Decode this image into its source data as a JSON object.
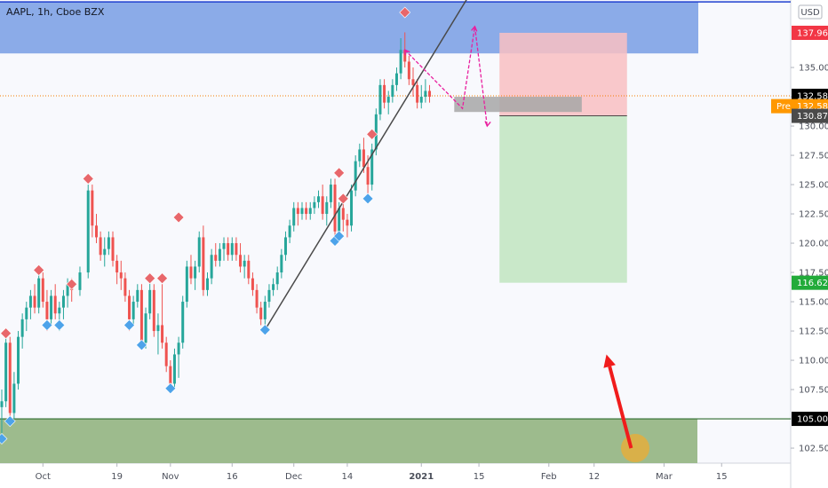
{
  "header": {
    "title": "AAPL, 1h, Cboe BZX",
    "currency": "USD"
  },
  "colors": {
    "plot_bg": "#f8f9fd",
    "up_candle": "#26a69a",
    "down_candle": "#ef5350",
    "supply_zone": "#7ea2e6",
    "supply_border": "#1e3fcf",
    "demand_zone": "#9dbb8d",
    "demand_border": "#2e6b2e",
    "stop_zone": "#f9bfc2",
    "target_zone": "#c9e8c9",
    "entry_box": "#a7a7a7",
    "trendline": "#4a4a4a",
    "projection": "#e91e9e",
    "sell_marker": "#e8676b",
    "buy_marker": "#4da3ea",
    "arrow": "#f01c1c",
    "circle": "#e4ae3d",
    "last_price_line": "#f57c00",
    "tag_red": "#f23645",
    "tag_green": "#22ab3a",
    "tag_dark": "#4a4a4a",
    "tag_black": "#000000",
    "tag_orange": "#ff9800"
  },
  "chart_data": {
    "type": "candlestick",
    "title": "AAPL, 1h, Cboe BZX",
    "ylim": [
      100.5,
      141.5
    ],
    "y_axis_ticks": [
      "102.50",
      "105.00",
      "107.50",
      "110.00",
      "112.50",
      "115.00",
      "117.50",
      "120.00",
      "122.50",
      "125.00",
      "127.50",
      "130.00",
      "132.50",
      "135.00"
    ],
    "x_axis_ticks": [
      "Oct",
      "19",
      "Nov",
      "16",
      "Dec",
      "14",
      "2021",
      "15",
      "Feb",
      "12",
      "Mar",
      "15"
    ],
    "price_tags": [
      {
        "value": 137.96,
        "label": "137.96",
        "kind": "red"
      },
      {
        "value": 132.58,
        "label": "132.58",
        "kind": "black"
      },
      {
        "value": 131.7,
        "label": "132.58",
        "prefix": "Pre",
        "kind": "orange"
      },
      {
        "value": 130.87,
        "label": "130.87",
        "kind": "dark"
      },
      {
        "value": 116.62,
        "label": "116.62",
        "kind": "green"
      },
      {
        "value": 105.0,
        "label": "105.00",
        "kind": "black"
      }
    ],
    "last_price": 132.58,
    "zones": {
      "supply": [
        136.2,
        140.6
      ],
      "demand": [
        101.0,
        105.0
      ],
      "stop_loss": [
        130.87,
        137.96
      ],
      "take_profit": [
        116.62,
        130.87
      ],
      "entry": [
        131.2,
        132.5
      ]
    },
    "trendline": [
      {
        "date": "2020-11-24",
        "price": 112.6
      },
      {
        "date": "2021-01-12",
        "price": 140.8
      }
    ],
    "projection": [
      {
        "date": "2021-01-11",
        "price": 131.5
      },
      {
        "date": "2021-01-14",
        "price": 138.5
      },
      {
        "date": "2021-01-17",
        "price": 130.0
      }
    ],
    "sell_signals": [
      {
        "date": "2020-09-22",
        "price": 112.3
      },
      {
        "date": "2020-09-30",
        "price": 117.7
      },
      {
        "date": "2020-10-08",
        "price": 116.5
      },
      {
        "date": "2020-10-12",
        "price": 125.5
      },
      {
        "date": "2020-10-27",
        "price": 117.0
      },
      {
        "date": "2020-10-30",
        "price": 117.0
      },
      {
        "date": "2020-11-03",
        "price": 122.2
      },
      {
        "date": "2020-12-12",
        "price": 126.0
      },
      {
        "date": "2020-12-13",
        "price": 123.8
      },
      {
        "date": "2020-12-20",
        "price": 129.3
      },
      {
        "date": "2020-12-28",
        "price": 139.7
      }
    ],
    "buy_signals": [
      {
        "date": "2020-09-21",
        "price": 103.3
      },
      {
        "date": "2020-09-23",
        "price": 104.8
      },
      {
        "date": "2020-10-02",
        "price": 113.0
      },
      {
        "date": "2020-10-05",
        "price": 113.0
      },
      {
        "date": "2020-10-22",
        "price": 113.0
      },
      {
        "date": "2020-10-25",
        "price": 111.3
      },
      {
        "date": "2020-11-01",
        "price": 107.6
      },
      {
        "date": "2020-11-24",
        "price": 112.6
      },
      {
        "date": "2020-12-11",
        "price": 120.2
      },
      {
        "date": "2020-12-12",
        "price": 120.6
      },
      {
        "date": "2020-12-19",
        "price": 123.8
      }
    ],
    "arrow": {
      "from": {
        "date": "2021-02-21",
        "price": 102.5
      },
      "to": {
        "date": "2021-02-15",
        "price": 110.5
      }
    },
    "circle": {
      "date": "2021-02-22",
      "price": 102.5
    },
    "series": [
      {
        "name": "AAPL",
        "ohlc": [
          [
            "2020-09-21",
            106.0,
            107.5,
            103.0,
            106.5
          ],
          [
            "2020-09-22",
            106.5,
            112.0,
            106.0,
            111.5
          ],
          [
            "2020-09-23",
            111.5,
            112.0,
            104.5,
            105.5
          ],
          [
            "2020-09-24",
            105.5,
            109.0,
            105.0,
            108.0
          ],
          [
            "2020-09-25",
            108.0,
            112.5,
            107.5,
            112.0
          ],
          [
            "2020-09-26",
            112.0,
            114.0,
            111.0,
            113.5
          ],
          [
            "2020-09-27",
            113.5,
            115.0,
            112.5,
            114.5
          ],
          [
            "2020-09-28",
            114.5,
            116.0,
            113.5,
            115.5
          ],
          [
            "2020-09-29",
            115.5,
            116.5,
            114.0,
            114.5
          ],
          [
            "2020-09-30",
            114.5,
            117.5,
            114.0,
            117.0
          ],
          [
            "2020-10-01",
            117.0,
            117.5,
            114.5,
            115.0
          ],
          [
            "2020-10-02",
            115.0,
            116.0,
            112.5,
            113.5
          ],
          [
            "2020-10-03",
            113.5,
            116.0,
            113.0,
            115.5
          ],
          [
            "2020-10-04",
            115.5,
            116.5,
            113.5,
            114.0
          ],
          [
            "2020-10-05",
            114.0,
            115.0,
            112.5,
            114.5
          ],
          [
            "2020-10-06",
            114.5,
            116.0,
            113.5,
            115.5
          ],
          [
            "2020-10-07",
            115.5,
            117.0,
            114.5,
            116.5
          ],
          [
            "2020-10-08",
            116.5,
            117.0,
            115.0,
            116.0
          ],
          [
            "2020-10-10",
            116.0,
            118.0,
            115.5,
            117.5
          ],
          [
            "2020-10-12",
            117.5,
            125.0,
            117.0,
            124.5
          ],
          [
            "2020-10-13",
            124.5,
            125.0,
            120.5,
            121.5
          ],
          [
            "2020-10-14",
            121.5,
            122.5,
            120.0,
            120.5
          ],
          [
            "2020-10-15",
            120.5,
            121.0,
            118.5,
            119.0
          ],
          [
            "2020-10-16",
            119.0,
            120.5,
            118.0,
            119.5
          ],
          [
            "2020-10-17",
            119.5,
            121.0,
            119.0,
            120.5
          ],
          [
            "2020-10-18",
            120.5,
            121.0,
            118.0,
            118.5
          ],
          [
            "2020-10-19",
            118.5,
            119.0,
            116.5,
            117.5
          ],
          [
            "2020-10-20",
            117.5,
            118.5,
            116.0,
            117.0
          ],
          [
            "2020-10-21",
            117.0,
            117.5,
            115.0,
            115.5
          ],
          [
            "2020-10-22",
            115.5,
            116.0,
            112.5,
            113.5
          ],
          [
            "2020-10-23",
            113.5,
            115.5,
            113.0,
            115.0
          ],
          [
            "2020-10-24",
            115.0,
            116.5,
            114.5,
            116.0
          ],
          [
            "2020-10-25",
            116.0,
            116.5,
            111.0,
            111.5
          ],
          [
            "2020-10-26",
            111.5,
            114.5,
            111.0,
            114.0
          ],
          [
            "2020-10-27",
            114.0,
            117.0,
            113.5,
            116.0
          ],
          [
            "2020-10-28",
            116.0,
            116.5,
            112.0,
            112.5
          ],
          [
            "2020-10-29",
            112.5,
            114.0,
            110.5,
            113.0
          ],
          [
            "2020-10-30",
            113.0,
            116.5,
            111.0,
            111.5
          ],
          [
            "2020-10-31",
            111.5,
            112.0,
            109.0,
            109.5
          ],
          [
            "2020-11-01",
            109.5,
            110.0,
            107.5,
            108.0
          ],
          [
            "2020-11-02",
            108.0,
            111.0,
            107.5,
            110.5
          ],
          [
            "2020-11-03",
            110.5,
            112.0,
            108.5,
            111.5
          ],
          [
            "2020-11-04",
            111.5,
            115.5,
            111.0,
            115.0
          ],
          [
            "2020-11-05",
            115.0,
            118.5,
            114.5,
            118.0
          ],
          [
            "2020-11-06",
            118.0,
            119.0,
            116.5,
            117.0
          ],
          [
            "2020-11-07",
            117.0,
            118.5,
            116.0,
            118.0
          ],
          [
            "2020-11-08",
            118.0,
            121.0,
            117.5,
            120.5
          ],
          [
            "2020-11-09",
            120.5,
            121.5,
            115.5,
            116.0
          ],
          [
            "2020-11-10",
            116.0,
            117.5,
            115.5,
            117.0
          ],
          [
            "2020-11-11",
            117.0,
            119.5,
            116.5,
            119.0
          ],
          [
            "2020-11-12",
            119.0,
            120.0,
            118.0,
            118.5
          ],
          [
            "2020-11-13",
            118.5,
            120.0,
            118.0,
            119.5
          ],
          [
            "2020-11-14",
            119.5,
            120.5,
            118.5,
            120.0
          ],
          [
            "2020-11-15",
            120.0,
            120.5,
            118.5,
            119.0
          ],
          [
            "2020-11-16",
            119.0,
            120.5,
            118.5,
            120.0
          ],
          [
            "2020-11-17",
            120.0,
            120.5,
            118.5,
            119.0
          ],
          [
            "2020-11-18",
            119.0,
            120.0,
            117.5,
            118.0
          ],
          [
            "2020-11-19",
            118.0,
            119.0,
            117.0,
            118.5
          ],
          [
            "2020-11-20",
            118.5,
            119.0,
            116.5,
            117.0
          ],
          [
            "2020-11-21",
            117.0,
            117.5,
            115.5,
            116.0
          ],
          [
            "2020-11-22",
            116.0,
            116.5,
            114.0,
            114.5
          ],
          [
            "2020-11-23",
            114.5,
            115.0,
            113.0,
            113.5
          ],
          [
            "2020-11-24",
            113.5,
            115.5,
            112.5,
            115.0
          ],
          [
            "2020-11-25",
            115.0,
            116.5,
            114.5,
            116.0
          ],
          [
            "2020-11-26",
            116.0,
            117.0,
            115.5,
            116.5
          ],
          [
            "2020-11-27",
            116.5,
            118.0,
            116.0,
            117.5
          ],
          [
            "2020-11-28",
            117.5,
            119.5,
            117.0,
            119.0
          ],
          [
            "2020-11-29",
            119.0,
            121.0,
            118.5,
            120.5
          ],
          [
            "2020-11-30",
            120.5,
            122.0,
            120.0,
            121.5
          ],
          [
            "2020-12-01",
            121.5,
            123.5,
            121.0,
            123.0
          ],
          [
            "2020-12-02",
            123.0,
            123.5,
            121.5,
            122.5
          ],
          [
            "2020-12-03",
            122.5,
            123.5,
            122.0,
            123.0
          ],
          [
            "2020-12-04",
            123.0,
            123.5,
            122.0,
            122.5
          ],
          [
            "2020-12-05",
            122.5,
            123.5,
            122.0,
            123.0
          ],
          [
            "2020-12-06",
            123.0,
            124.0,
            122.5,
            123.5
          ],
          [
            "2020-12-07",
            123.5,
            124.5,
            123.0,
            124.0
          ],
          [
            "2020-12-08",
            124.0,
            125.0,
            122.0,
            122.5
          ],
          [
            "2020-12-09",
            122.5,
            124.0,
            121.5,
            123.5
          ],
          [
            "2020-12-10",
            123.5,
            125.5,
            123.0,
            125.0
          ],
          [
            "2020-12-11",
            125.0,
            125.5,
            120.5,
            121.0
          ],
          [
            "2020-12-12",
            121.0,
            123.5,
            120.5,
            123.0
          ],
          [
            "2020-12-13",
            123.0,
            123.5,
            121.0,
            122.0
          ],
          [
            "2020-12-14",
            122.0,
            122.5,
            120.5,
            121.5
          ],
          [
            "2020-12-15",
            121.5,
            125.0,
            121.0,
            124.5
          ],
          [
            "2020-12-16",
            124.5,
            127.5,
            124.0,
            127.0
          ],
          [
            "2020-12-17",
            127.0,
            128.5,
            126.5,
            128.0
          ],
          [
            "2020-12-18",
            128.0,
            129.0,
            126.0,
            126.5
          ],
          [
            "2020-12-19",
            126.5,
            127.5,
            124.0,
            125.0
          ],
          [
            "2020-12-20",
            125.0,
            128.5,
            124.5,
            128.0
          ],
          [
            "2020-12-21",
            128.0,
            131.5,
            127.5,
            131.0
          ],
          [
            "2020-12-22",
            131.0,
            134.0,
            130.5,
            133.5
          ],
          [
            "2020-12-23",
            133.5,
            134.0,
            131.5,
            132.0
          ],
          [
            "2020-12-24",
            132.0,
            133.0,
            131.0,
            132.5
          ],
          [
            "2020-12-25",
            132.5,
            134.0,
            132.0,
            133.5
          ],
          [
            "2020-12-26",
            133.5,
            135.0,
            133.0,
            134.5
          ],
          [
            "2020-12-27",
            134.5,
            137.5,
            134.0,
            136.5
          ],
          [
            "2020-12-28",
            136.5,
            138.0,
            135.0,
            135.5
          ],
          [
            "2020-12-29",
            135.5,
            136.0,
            133.5,
            134.0
          ],
          [
            "2020-12-30",
            134.0,
            135.0,
            132.5,
            133.5
          ],
          [
            "2020-12-31",
            133.5,
            134.0,
            131.5,
            132.0
          ],
          [
            "2021-01-01",
            132.0,
            133.5,
            131.5,
            132.5
          ],
          [
            "2021-01-02",
            132.5,
            134.0,
            132.0,
            133.0
          ],
          [
            "2021-01-03",
            133.0,
            133.5,
            132.0,
            132.5
          ]
        ]
      }
    ]
  }
}
